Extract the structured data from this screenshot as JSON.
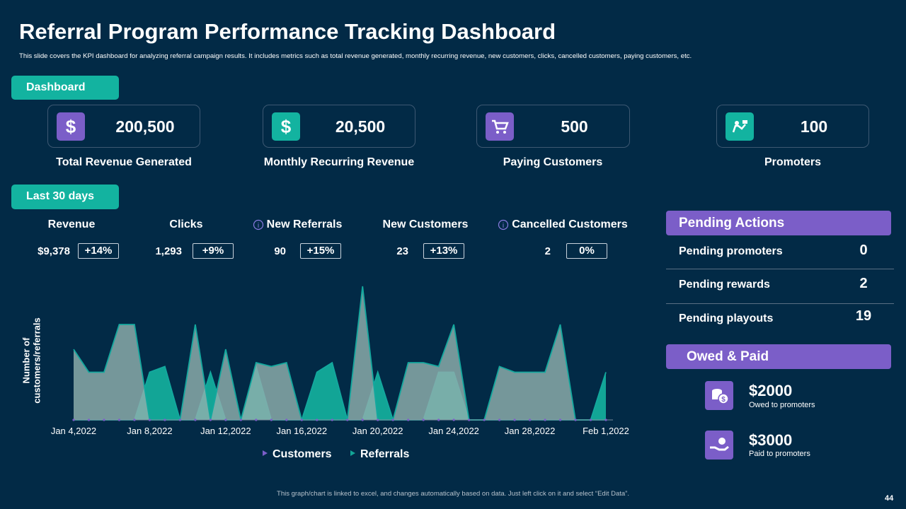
{
  "header": {
    "title": "Referral Program Performance Tracking Dashboard",
    "subtitle": "This slide covers the KPI dashboard for analyzing referral campaign results. It includes metrics such as total revenue generated, monthly recurring revenue, new customers, clicks, cancelled customers, paying customers, etc."
  },
  "dashboard_label": "Dashboard",
  "kpis": [
    {
      "value": "200,500",
      "label": "Total Revenue Generated"
    },
    {
      "value": "20,500",
      "label": "Monthly Recurring Revenue"
    },
    {
      "value": "500",
      "label": "Paying Customers"
    },
    {
      "value": "100",
      "label": "Promoters"
    }
  ],
  "period_label": "Last 30 days",
  "metrics": [
    {
      "name": "Revenue",
      "value": "$9,378",
      "change": "+14%"
    },
    {
      "name": "Clicks",
      "value": "1,293",
      "change": "+9%"
    },
    {
      "name": "New Referrals",
      "value": "90",
      "change": "+15%"
    },
    {
      "name": "New Customers",
      "value": "23",
      "change": "+13%"
    },
    {
      "name": "Cancelled Customers",
      "value": "2",
      "change": "0%"
    }
  ],
  "pending": {
    "title": "Pending Actions",
    "items": [
      {
        "label": "Pending promoters",
        "value": 0
      },
      {
        "label": "Pending rewards",
        "value": 2
      },
      {
        "label": "Pending playouts",
        "value": 19
      }
    ]
  },
  "owed_paid": {
    "title": "Owed & Paid",
    "items": [
      {
        "amount": "$2000",
        "caption": "Owed to promoters"
      },
      {
        "amount": "$3000",
        "caption": "Paid to promoters"
      }
    ]
  },
  "chart_data": {
    "type": "area",
    "ylabel": "Number of customers/referrals",
    "categories": [
      "Jan 4,2022",
      null,
      null,
      null,
      null,
      "Jan 8,2022",
      null,
      null,
      null,
      null,
      "Jan 12,2022",
      null,
      null,
      null,
      null,
      "Jan 16,2022",
      null,
      null,
      null,
      null,
      "Jan 20,2022",
      null,
      null,
      null,
      null,
      "Jan 24,2022",
      null,
      null,
      null,
      null,
      "Jan 28,2022",
      null,
      null,
      null,
      null,
      "Feb 1,2022"
    ],
    "ylim": [
      0,
      7
    ],
    "series": [
      {
        "name": "Referrals",
        "color": "#12a596",
        "values": [
          0,
          0,
          0,
          0,
          0,
          2.5,
          2.8,
          0,
          0,
          2.5,
          0,
          0,
          2.8,
          0,
          0,
          0,
          2.5,
          3,
          0,
          0,
          2.5,
          0,
          0,
          0,
          2.5,
          2.5,
          0,
          0,
          0,
          0,
          0,
          0,
          0,
          0,
          0,
          2.5
        ]
      },
      {
        "name": "Customers",
        "color": "#8fb0ad",
        "values": [
          3.7,
          2.5,
          2.5,
          5,
          5,
          0,
          0,
          0,
          5,
          0,
          3.7,
          0,
          3,
          2.8,
          3,
          0,
          0,
          0,
          0,
          7,
          0,
          0,
          3,
          3,
          2.8,
          5,
          0,
          0,
          2.8,
          2.5,
          2.5,
          2.5,
          5,
          0,
          0,
          0
        ]
      }
    ],
    "legend_order": [
      1,
      0
    ]
  },
  "footer": "This graph/chart is linked to excel, and changes automatically based on data. Just left click on it and select “Edit Data”.",
  "page_number": "44"
}
